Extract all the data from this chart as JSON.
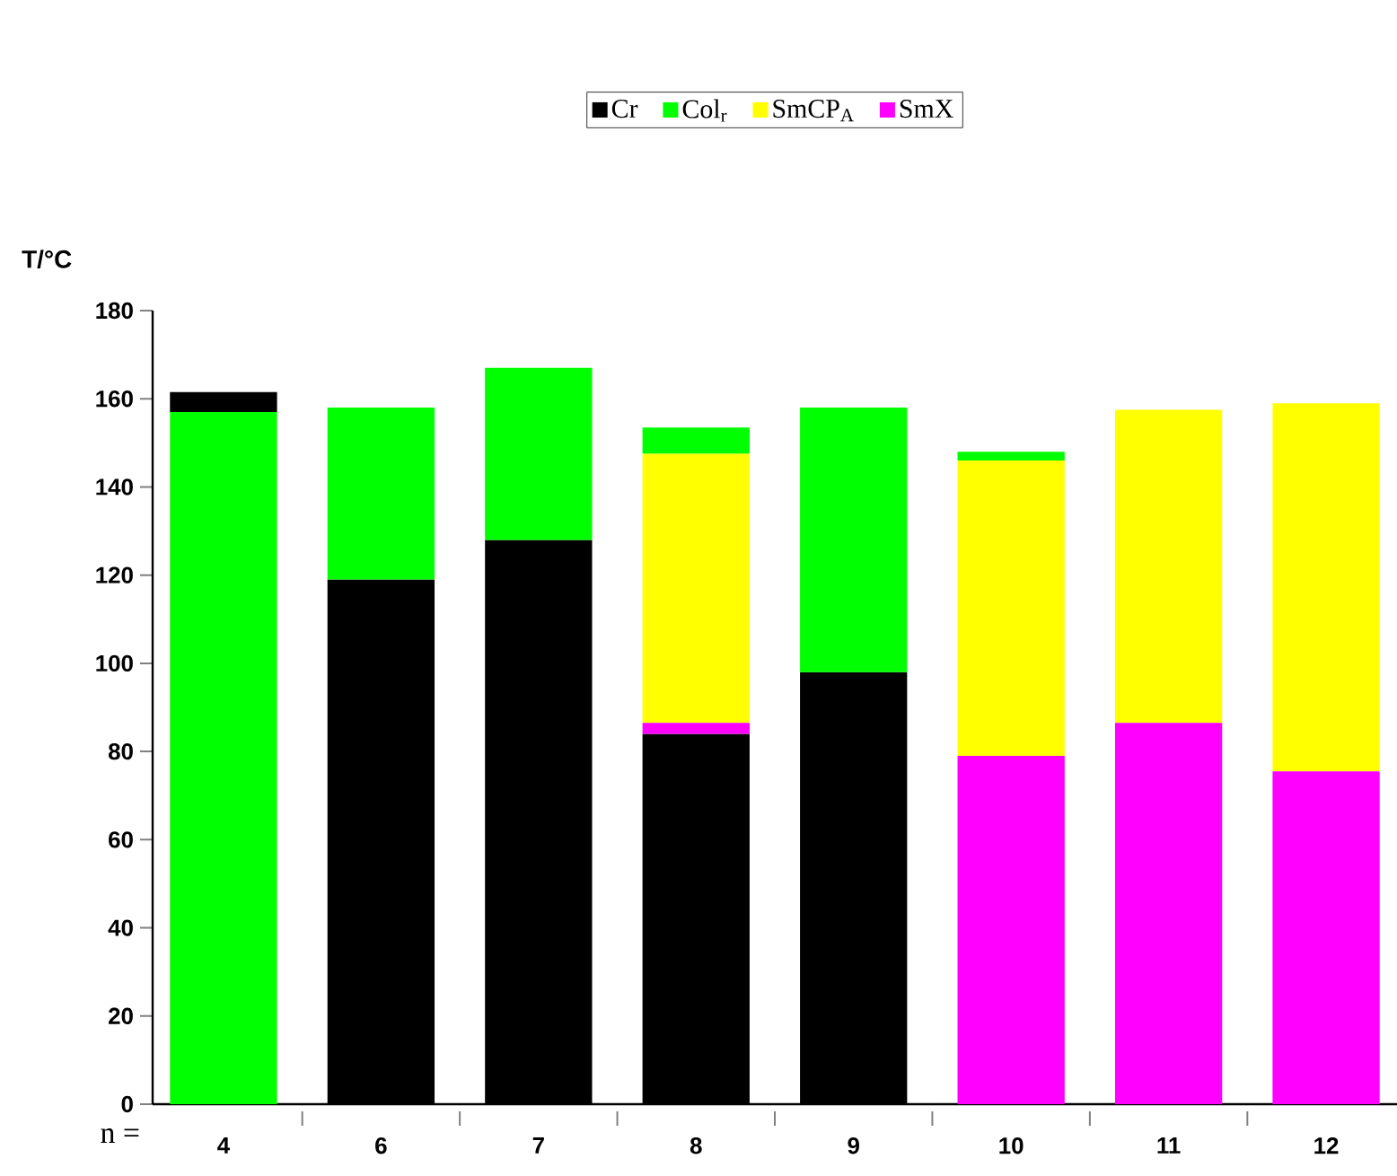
{
  "chart_data": {
    "type": "bar",
    "xlabel": "n =",
    "ylabel": "T/°C",
    "categories": [
      "4",
      "6",
      "7",
      "8",
      "9",
      "10",
      "11",
      "12"
    ],
    "series": [
      {
        "name": "Cr",
        "color": "#000000",
        "values": [
          null,
          119,
          128,
          84,
          98,
          null,
          null,
          null
        ],
        "base": [
          null,
          0,
          0,
          0,
          0,
          null,
          null,
          null
        ]
      },
      {
        "name": "Col$_{r}$",
        "color": "#00ff00",
        "values": [
          157,
          39,
          39,
          6,
          60,
          2,
          null,
          null
        ],
        "base": [
          0,
          119,
          128,
          147.5,
          98,
          146,
          null,
          null
        ]
      },
      {
        "name": "SmCP$_{A}$",
        "color": "#ffff00",
        "values": [
          null,
          null,
          null,
          61,
          null,
          67,
          71,
          83.5
        ],
        "base": [
          null,
          null,
          null,
          86.5,
          null,
          79,
          86.5,
          75.5
        ]
      },
      {
        "name": "SmX",
        "color": "#ff00ff",
        "values": [
          null,
          null,
          null,
          2.5,
          null,
          79,
          86.5,
          75.5
        ],
        "base": [
          null,
          null,
          null,
          84,
          null,
          0,
          0,
          0
        ]
      },
      {
        "color": "#000000",
        "values": [
          4.5,
          null,
          null,
          null,
          null,
          null,
          null,
          null
        ],
        "base": [
          157,
          null,
          null,
          null,
          null,
          null,
          null,
          null
        ]
      }
    ],
    "legend": "top",
    "ylim": [
      0,
      180
    ],
    "yticks": [
      0,
      20,
      40,
      60,
      80,
      100,
      120,
      140,
      160,
      180
    ]
  }
}
